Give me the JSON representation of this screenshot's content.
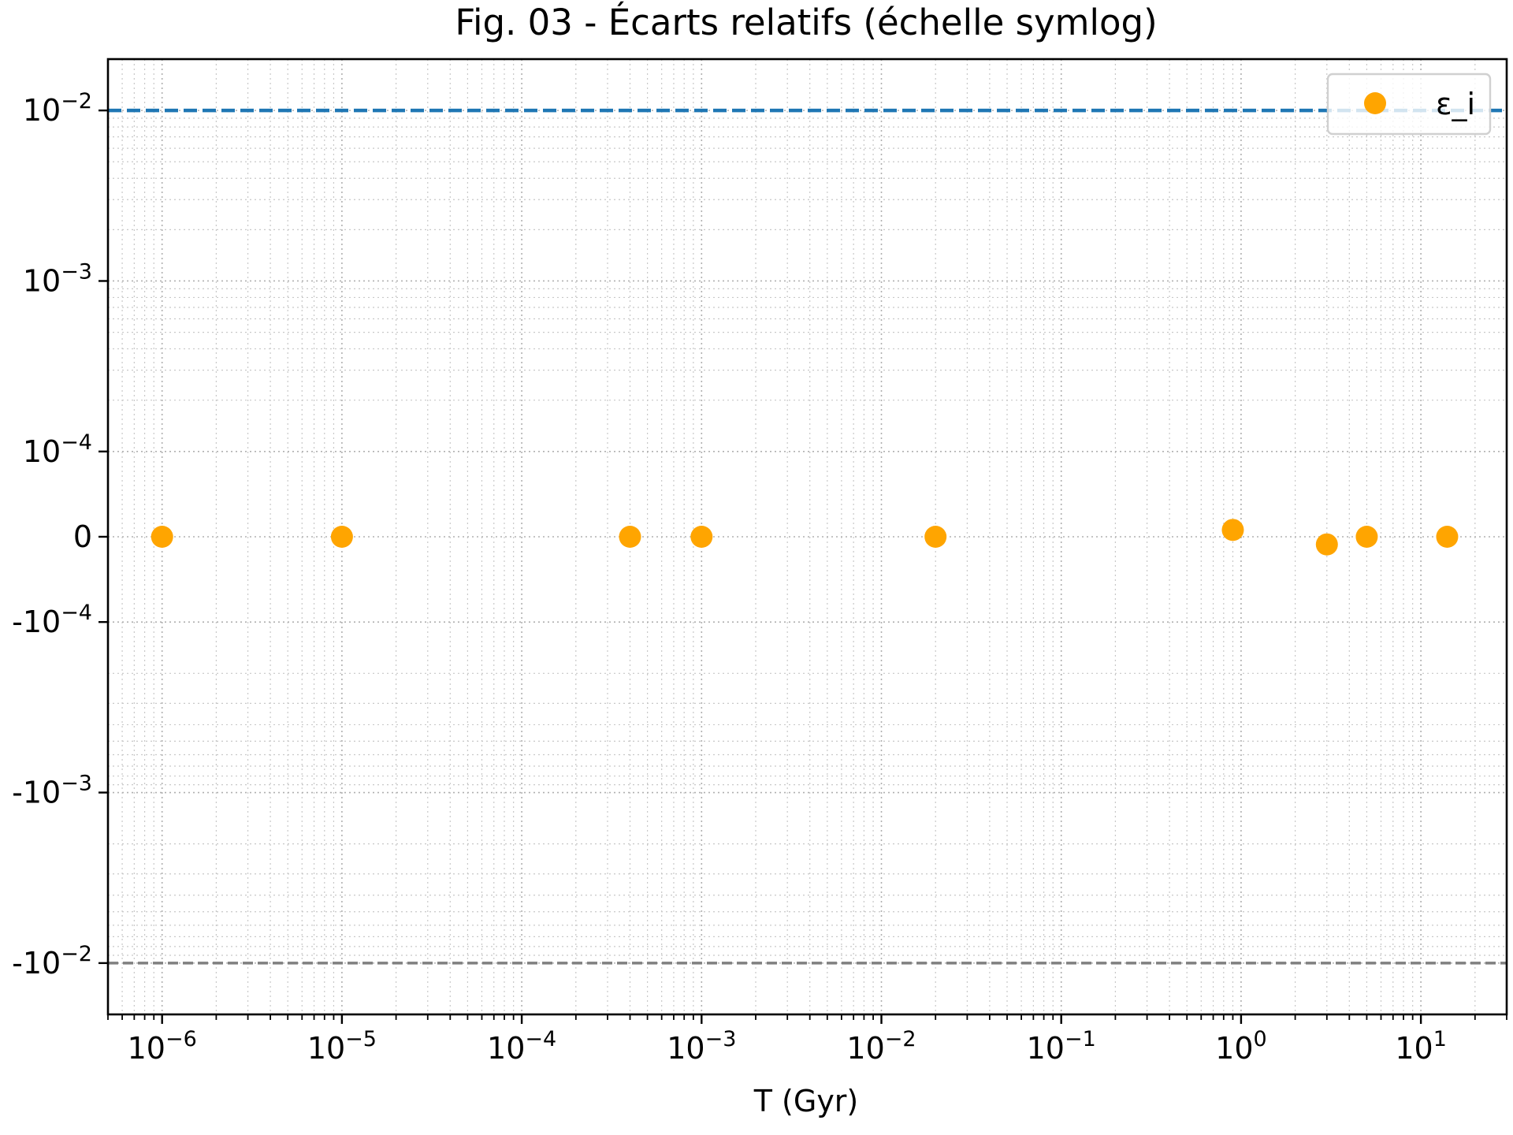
{
  "chart_data": {
    "type": "scatter",
    "title": "Fig. 03 - Écarts relatifs (échelle symlog)",
    "xlabel": "T (Gyr)",
    "ylabel": "",
    "x_scale": "log",
    "y_scale": "symlog",
    "y_linthresh": 0.0001,
    "xlim": [
      5e-07,
      30
    ],
    "ylim": [
      -0.02,
      0.02
    ],
    "grid": true,
    "legend": {
      "position": "top-right",
      "entries": [
        "ε_i"
      ]
    },
    "x_ticks": [
      {
        "value": 1e-06,
        "base": "10",
        "exp": "−6"
      },
      {
        "value": 1e-05,
        "base": "10",
        "exp": "−5"
      },
      {
        "value": 0.0001,
        "base": "10",
        "exp": "−4"
      },
      {
        "value": 0.001,
        "base": "10",
        "exp": "−3"
      },
      {
        "value": 0.01,
        "base": "10",
        "exp": "−2"
      },
      {
        "value": 0.1,
        "base": "10",
        "exp": "−1"
      },
      {
        "value": 1,
        "base": "10",
        "exp": "0"
      },
      {
        "value": 10,
        "base": "10",
        "exp": "1"
      }
    ],
    "y_ticks": [
      {
        "value": 0.01,
        "base": "10",
        "exp": "−2"
      },
      {
        "value": 0.001,
        "base": "10",
        "exp": "−3"
      },
      {
        "value": 0.0001,
        "base": "10",
        "exp": "−4"
      },
      {
        "value": 0,
        "base": "0",
        "exp": ""
      },
      {
        "value": -0.0001,
        "base": "-10",
        "exp": "−4"
      },
      {
        "value": -0.001,
        "base": "-10",
        "exp": "−3"
      },
      {
        "value": -0.01,
        "base": "-10",
        "exp": "−2"
      }
    ],
    "series": [
      {
        "name": "ε_i",
        "color": "#ffa500",
        "x": [
          1e-06,
          1e-05,
          0.0004,
          0.001,
          0.02,
          0.9,
          3,
          5,
          14
        ],
        "y": [
          0,
          0,
          0,
          0,
          0,
          8e-06,
          -9e-06,
          0,
          0
        ]
      }
    ],
    "reference_lines": [
      {
        "y": 0.01,
        "color": "#1f77b4",
        "style": "dashed"
      },
      {
        "y": -0.01,
        "color": "#808080",
        "style": "dashed"
      }
    ]
  }
}
